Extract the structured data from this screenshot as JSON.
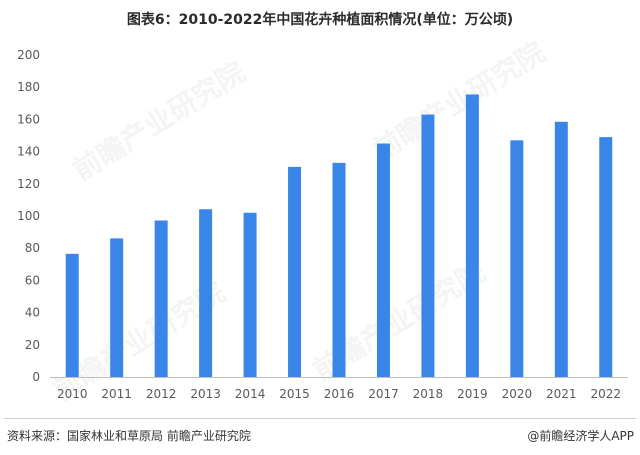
{
  "title": "图表6：2010-2022年中国花卉种植面积情况(单位：万公顷)",
  "source": "资料来源：国家林业和草原局 前瞻产业研究院",
  "brand": "@前瞻经济学人APP",
  "watermark": "前瞻产业研究院",
  "colors": {
    "bar": "#3a86e8",
    "axis": "#bfbfbf",
    "tick_text": "#595959"
  },
  "chart_data": {
    "type": "bar",
    "title": "图表6：2010-2022年中国花卉种植面积情况(单位：万公顷)",
    "categories": [
      "2010",
      "2011",
      "2012",
      "2013",
      "2014",
      "2015",
      "2016",
      "2017",
      "2018",
      "2019",
      "2020",
      "2021",
      "2022"
    ],
    "values": [
      76.5,
      86.1,
      97.2,
      104.2,
      102.0,
      130.5,
      133.0,
      145.0,
      163.0,
      175.5,
      147.0,
      158.5,
      149.0
    ],
    "ylim": [
      0,
      200
    ],
    "yticks": [
      0,
      20,
      40,
      60,
      80,
      100,
      120,
      140,
      160,
      180,
      200
    ],
    "xlabel": "",
    "ylabel": "",
    "grid": false,
    "legend": "none"
  }
}
